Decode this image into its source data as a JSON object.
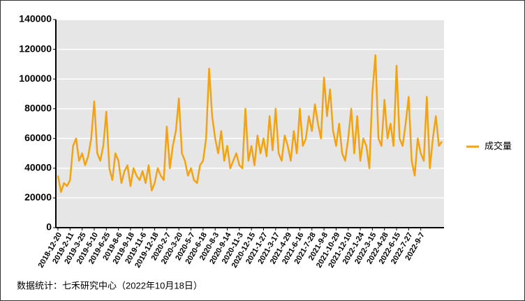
{
  "chart_data": {
    "type": "line",
    "categories": [
      "2018-12-20",
      null,
      null,
      null,
      "2019-2-11",
      null,
      null,
      null,
      "2019-3-25",
      null,
      null,
      null,
      "2019-5-10",
      null,
      null,
      null,
      "2019-6-25",
      null,
      null,
      null,
      "2019-8-6",
      null,
      null,
      null,
      "2019-9-18",
      null,
      null,
      null,
      "2019-11-6",
      null,
      null,
      null,
      "2019-12-18",
      null,
      null,
      null,
      "2020-2-7",
      null,
      null,
      null,
      "2020-3-20",
      null,
      null,
      null,
      "2020-5-7",
      null,
      null,
      null,
      "2020-6-18",
      null,
      null,
      null,
      "2020-8-3",
      null,
      null,
      null,
      "2020-9-14",
      null,
      null,
      null,
      "2020-11-3",
      null,
      null,
      null,
      "2020-12-15",
      null,
      null,
      null,
      "2021-1-27",
      null,
      null,
      null,
      "2021-3-17",
      null,
      null,
      null,
      "2021-4-29",
      null,
      null,
      null,
      "2021-6-16",
      null,
      null,
      null,
      "2021-7-28",
      null,
      null,
      null,
      "2021-9-8",
      null,
      null,
      null,
      "2021-10-29",
      null,
      null,
      null,
      "2021-12-10",
      null,
      null,
      null,
      "2022-1-24",
      null,
      null,
      null,
      "2022-3-15",
      null,
      null,
      null,
      "2022-4-28",
      null,
      null,
      null,
      "2022-6-15",
      null,
      null,
      null,
      "2022-7-27",
      null,
      null,
      null,
      "2022-9-7",
      null,
      null,
      null,
      null,
      null,
      null,
      null
    ],
    "series": [
      {
        "name": "成交量",
        "color": "#f2a30f",
        "values": [
          35000,
          24000,
          30000,
          28000,
          32000,
          55000,
          60000,
          45000,
          50000,
          42000,
          48000,
          60000,
          85000,
          50000,
          45000,
          55000,
          78000,
          40000,
          32000,
          50000,
          45000,
          30000,
          38000,
          42000,
          28000,
          40000,
          35000,
          32000,
          38000,
          30000,
          42000,
          25000,
          30000,
          40000,
          35000,
          32000,
          68000,
          40000,
          55000,
          65000,
          87000,
          50000,
          45000,
          35000,
          40000,
          32000,
          30000,
          42000,
          45000,
          60000,
          107000,
          75000,
          60000,
          50000,
          65000,
          45000,
          55000,
          40000,
          45000,
          50000,
          42000,
          40000,
          80000,
          45000,
          55000,
          42000,
          62000,
          50000,
          60000,
          48000,
          75000,
          52000,
          80000,
          50000,
          45000,
          62000,
          55000,
          45000,
          65000,
          50000,
          80000,
          55000,
          60000,
          75000,
          65000,
          83000,
          70000,
          60000,
          101000,
          75000,
          93000,
          65000,
          55000,
          70000,
          50000,
          45000,
          60000,
          80000,
          50000,
          75000,
          45000,
          60000,
          55000,
          40000,
          91000,
          116000,
          60000,
          55000,
          86000,
          60000,
          70000,
          55000,
          109000,
          60000,
          55000,
          70000,
          88000,
          45000,
          35000,
          60000,
          50000,
          45000,
          88000,
          40000,
          60000,
          75000,
          55000,
          58000
        ]
      }
    ],
    "ylim": [
      0,
      140000
    ],
    "yticks": [
      0,
      20000,
      40000,
      60000,
      80000,
      100000,
      120000,
      140000
    ],
    "grid": true,
    "legend": "right",
    "source": "数据统计：七禾研究中心（2022年10月18日）"
  }
}
